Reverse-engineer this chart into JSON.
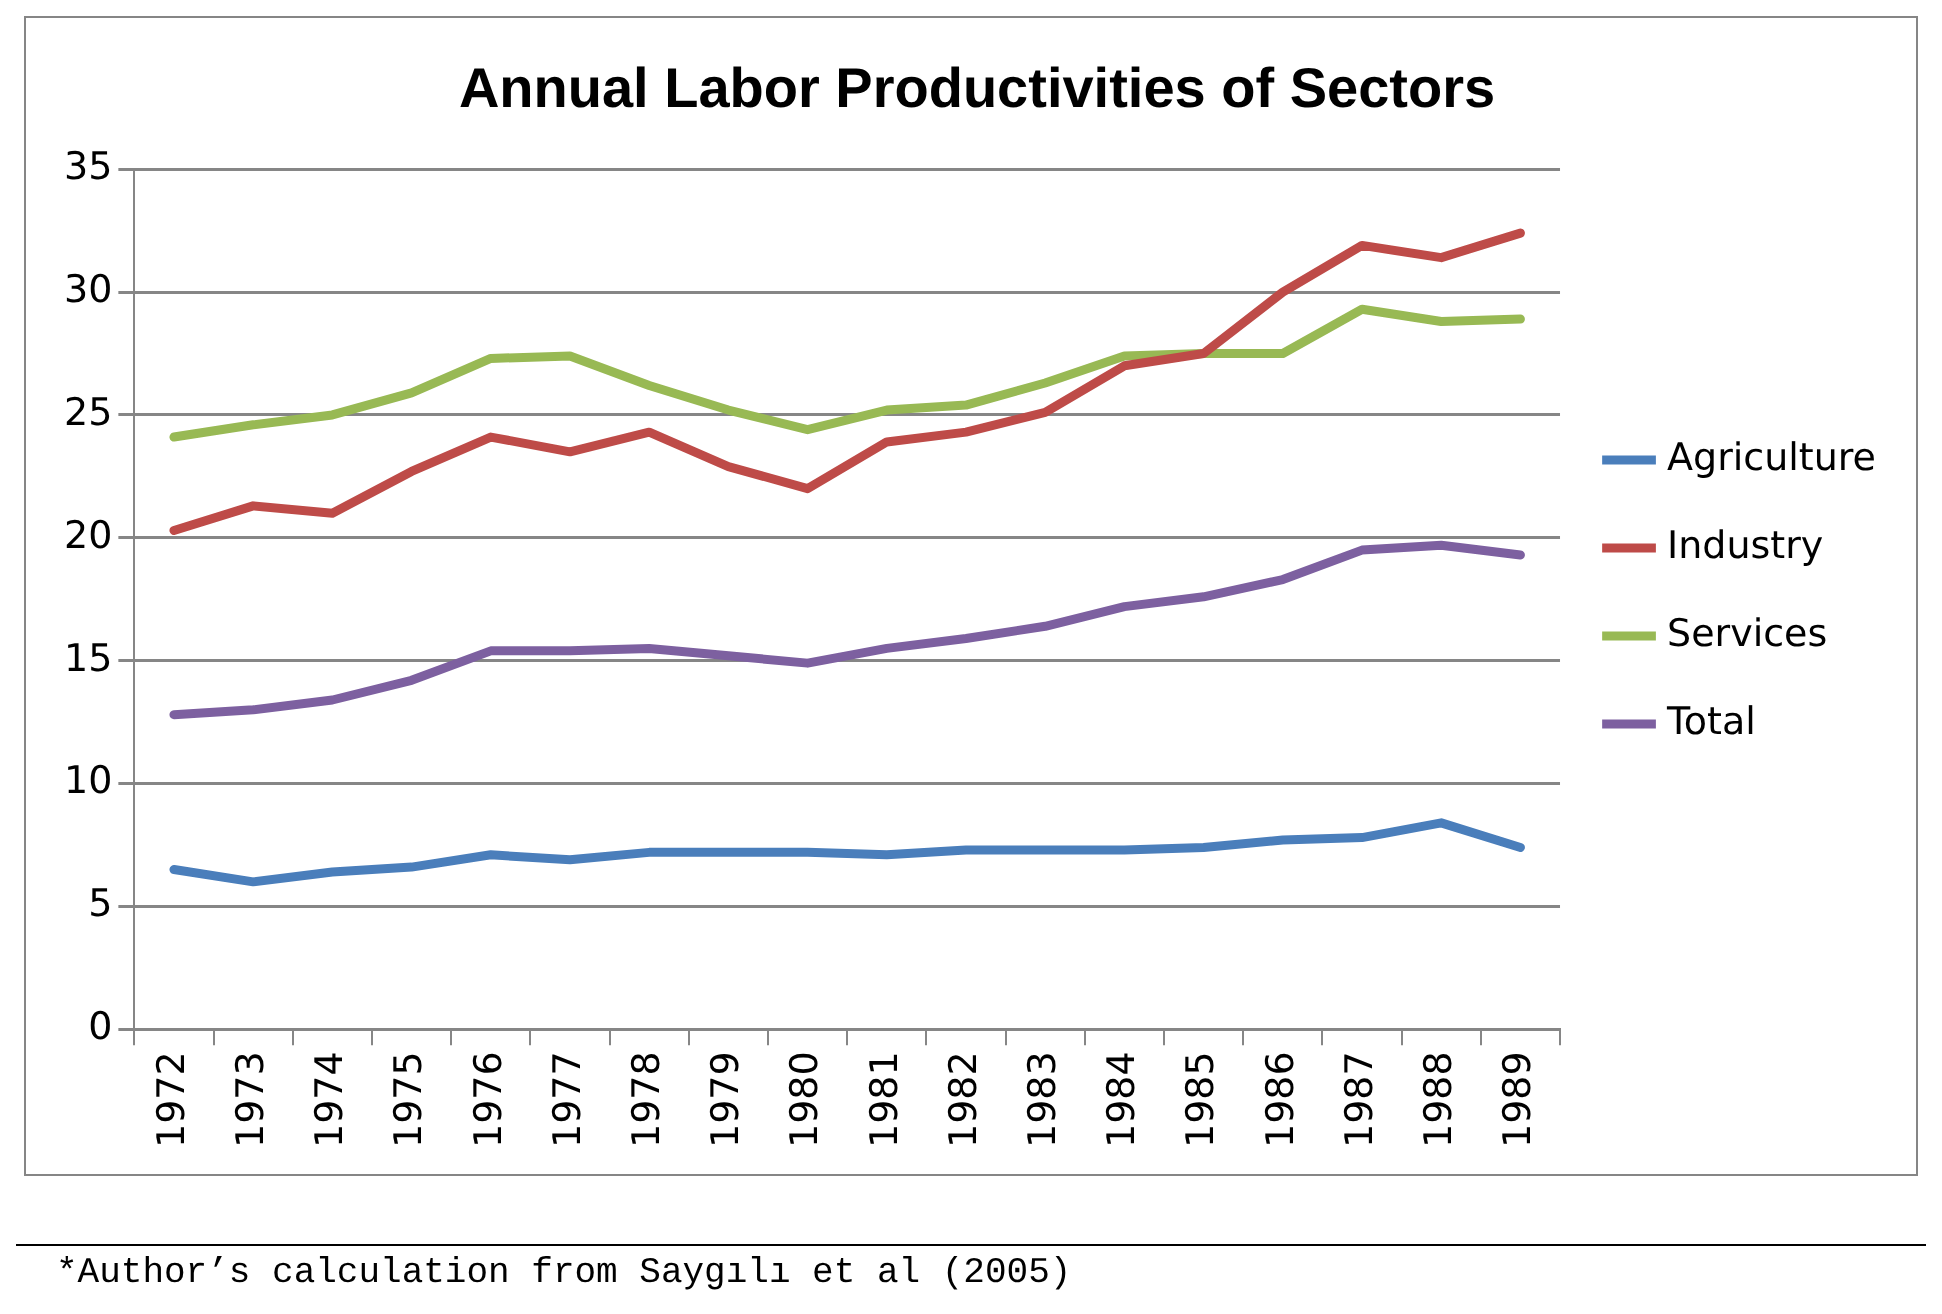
{
  "chart_data": {
    "type": "line",
    "title": "Annual Labor Productivities of Sectors",
    "categories": [
      "1972",
      "1973",
      "1974",
      "1975",
      "1976",
      "1977",
      "1978",
      "1979",
      "1980",
      "1981",
      "1982",
      "1983",
      "1984",
      "1985",
      "1986",
      "1987",
      "1988",
      "1989"
    ],
    "series": [
      {
        "name": "Agriculture",
        "color": "#4a7ebb",
        "values": [
          6.5,
          6.0,
          6.4,
          6.6,
          7.1,
          6.9,
          7.2,
          7.2,
          7.2,
          7.1,
          7.3,
          7.3,
          7.3,
          7.4,
          7.7,
          7.8,
          8.4,
          7.4
        ]
      },
      {
        "name": "Industry",
        "color": "#be4b48",
        "values": [
          20.3,
          21.3,
          21.0,
          22.7,
          24.1,
          23.5,
          24.3,
          22.9,
          22.0,
          23.9,
          24.3,
          25.1,
          27.0,
          27.5,
          30.0,
          31.9,
          31.4,
          32.4
        ]
      },
      {
        "name": "Services",
        "color": "#98b954",
        "values": [
          24.1,
          24.6,
          25.0,
          25.9,
          27.3,
          27.4,
          26.2,
          25.2,
          24.4,
          25.2,
          25.4,
          26.3,
          27.4,
          27.5,
          27.5,
          29.3,
          28.8,
          28.9
        ]
      },
      {
        "name": "Total",
        "color": "#7d60a0",
        "values": [
          12.8,
          13.0,
          13.4,
          14.2,
          15.4,
          15.4,
          15.5,
          15.2,
          14.9,
          15.5,
          15.9,
          16.4,
          17.2,
          17.6,
          18.3,
          19.5,
          19.7,
          19.3
        ]
      }
    ],
    "ylim": [
      0,
      35
    ],
    "yticks": [
      0,
      5,
      10,
      15,
      20,
      25,
      30,
      35
    ],
    "grid": "y",
    "legend": "right",
    "marker": "none",
    "line_style": "solid",
    "annotations": [
      "*Author’s calculation from Saygılı et al (2005)"
    ]
  }
}
